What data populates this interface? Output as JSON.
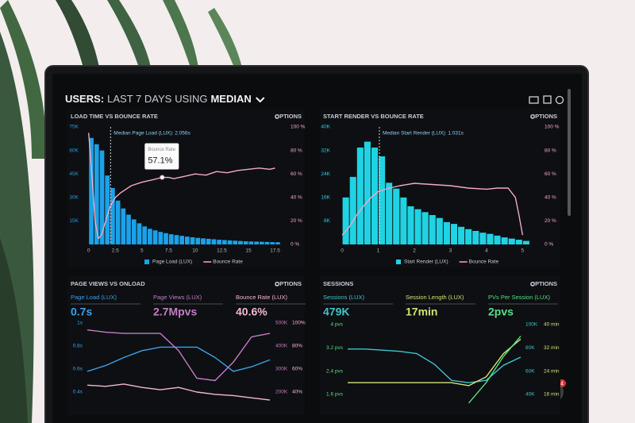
{
  "header": {
    "title": [
      "USERS:",
      "LAST 7 DAYS",
      "USING",
      "MEDIAN"
    ]
  },
  "chat_badge": 4,
  "chart_data": [
    {
      "type": "histogram",
      "title": "LOAD TIME VS BOUNCE RATE",
      "options": "OPTIONS",
      "bins": [
        0,
        0.5,
        1,
        1.5,
        2,
        2.5,
        3,
        3.5,
        4,
        4.5,
        5,
        5.5,
        6,
        6.5,
        7,
        7.5,
        8,
        8.5,
        9,
        9.5,
        10,
        10.5,
        11,
        11.5,
        12,
        12.5,
        13,
        13.5,
        14,
        14.5,
        15,
        15.5,
        16,
        16.5,
        17,
        17.5,
        18
      ],
      "series": [
        {
          "name": "Page Load (LUX)",
          "color": "#1ba2e8",
          "values": [
            68000,
            64000,
            60000,
            44000,
            36000,
            28000,
            23000,
            19000,
            16000,
            13500,
            11500,
            10000,
            9000,
            8000,
            7200,
            6500,
            6000,
            5500,
            5000,
            4600,
            4200,
            3900,
            3600,
            3300,
            3000,
            2800,
            2600,
            2400,
            2200,
            2000,
            1900,
            1800,
            1700,
            1600,
            1500,
            1400
          ]
        },
        {
          "name": "Bounce Rate",
          "color": "#f2a9c6",
          "axis": "y2",
          "x": [
            0,
            0.3,
            0.6,
            0.9,
            1.2,
            1.6,
            2,
            2.5,
            3,
            3.5,
            4,
            5,
            6,
            6.9,
            7.5,
            8,
            9,
            10,
            11,
            12,
            13,
            14,
            15,
            16,
            17,
            17.5
          ],
          "values": [
            95,
            60,
            20,
            5,
            8,
            20,
            32,
            40,
            44,
            47,
            50,
            53,
            55,
            57.1,
            57,
            56,
            58,
            60,
            59,
            62,
            61,
            63,
            64,
            65,
            64,
            65
          ]
        }
      ],
      "xlim": [
        -0.5,
        18.5
      ],
      "xticks": [
        0,
        2.5,
        5,
        7.5,
        10,
        12.5,
        15,
        17.5
      ],
      "ylim": [
        0,
        75000
      ],
      "yticks": [
        {
          "value": 15000,
          "label": "15K"
        },
        {
          "value": 30000,
          "label": "30K"
        },
        {
          "value": 45000,
          "label": "45K"
        },
        {
          "value": 60000,
          "label": "60K"
        },
        {
          "value": 75000,
          "label": "75K"
        }
      ],
      "y2lim": [
        0,
        100
      ],
      "y2ticks": [
        {
          "value": 0,
          "label": "0 %"
        },
        {
          "value": 20,
          "label": "20 %"
        },
        {
          "value": 40,
          "label": "40 %"
        },
        {
          "value": 60,
          "label": "60 %"
        },
        {
          "value": 80,
          "label": "80 %"
        },
        {
          "value": 100,
          "label": "100 %"
        }
      ],
      "annotations": [
        {
          "text": "Median Page Load (LUX): 2.056s",
          "x": 2.056
        }
      ],
      "tooltip": {
        "label": "Bounce Rate",
        "x": 6.9,
        "value": 57.1,
        "value_label": "57.1%"
      }
    },
    {
      "type": "histogram",
      "title": "START RENDER VS BOUNCE RATE",
      "options": "OPTIONS",
      "bins": [
        0,
        0.2,
        0.4,
        0.6,
        0.8,
        1,
        1.2,
        1.4,
        1.6,
        1.8,
        2,
        2.2,
        2.4,
        2.6,
        2.8,
        3,
        3.2,
        3.4,
        3.6,
        3.8,
        4,
        4.2,
        4.4,
        4.6,
        4.8,
        5,
        5.2
      ],
      "series": [
        {
          "name": "Start Render (LUX)",
          "color": "#1fd3e3",
          "values": [
            16000,
            23000,
            33000,
            35000,
            33000,
            30000,
            21000,
            19000,
            16000,
            13000,
            12000,
            11000,
            10000,
            9000,
            7600,
            7000,
            6000,
            5200,
            4600,
            4000,
            3600,
            3000,
            2400,
            2000,
            1600,
            1200
          ]
        },
        {
          "name": "Bounce Rate",
          "color": "#f2a9c6",
          "axis": "y2",
          "x": [
            0,
            0.2,
            0.4,
            0.6,
            0.8,
            1,
            1.3,
            1.6,
            2,
            2.5,
            3,
            3.5,
            4,
            4.3,
            4.6,
            4.8,
            4.9,
            5
          ],
          "values": [
            8,
            15,
            25,
            33,
            40,
            45,
            48,
            50,
            52,
            51,
            50,
            48,
            47,
            48,
            48,
            40,
            25,
            8
          ]
        }
      ],
      "xlim": [
        -0.2,
        5.3
      ],
      "xticks": [
        0,
        1,
        2,
        3,
        4,
        5
      ],
      "ylim": [
        0,
        40000
      ],
      "yticks": [
        {
          "value": 8000,
          "label": "8K"
        },
        {
          "value": 16000,
          "label": "16K"
        },
        {
          "value": 24000,
          "label": "24K"
        },
        {
          "value": 32000,
          "label": "32K"
        },
        {
          "value": 40000,
          "label": "40K"
        }
      ],
      "y2lim": [
        0,
        100
      ],
      "y2ticks": [
        {
          "value": 0,
          "label": "0 %"
        },
        {
          "value": 20,
          "label": "20 %"
        },
        {
          "value": 40,
          "label": "40 %"
        },
        {
          "value": 60,
          "label": "60 %"
        },
        {
          "value": 80,
          "label": "80 %"
        },
        {
          "value": 100,
          "label": "100 %"
        }
      ],
      "annotations": [
        {
          "text": "Median Start Render (LUX): 1.031s",
          "x": 1.031
        }
      ]
    },
    {
      "type": "line",
      "title": "PAGE VIEWS VS ONLOAD",
      "options": "OPTIONS",
      "categories": [
        null,
        null,
        null,
        null,
        null,
        null,
        null,
        null,
        null,
        null,
        null
      ],
      "series": [
        {
          "name": "Page Load (LUX)",
          "kpi": "0.7s",
          "color": "#3aa2ea",
          "values": [
            0.58,
            0.63,
            0.7,
            0.76,
            0.79,
            0.79,
            0.79,
            0.7,
            0.58,
            0.62,
            0.68
          ]
        },
        {
          "name": "Page Views (LUX)",
          "kpi": "2.7Mpvs",
          "color": "#c57cc8",
          "axis": "y2",
          "values": [
            470000,
            460000,
            455000,
            455000,
            455000,
            380000,
            260000,
            250000,
            330000,
            440000,
            455000
          ]
        },
        {
          "name": "Bounce Rate (LUX)",
          "kpi": "40.6%",
          "color": "#f5b7cf",
          "axis": "y3",
          "values": [
            46,
            45,
            47,
            44,
            42,
            44,
            40,
            38,
            37,
            35,
            33
          ]
        }
      ],
      "ylim": [
        0.3,
        1
      ],
      "yticks": [
        {
          "value": 0.4,
          "label": "0.4s"
        },
        {
          "value": 0.6,
          "label": "0.6s"
        },
        {
          "value": 0.8,
          "label": "0.8s"
        },
        {
          "value": 1,
          "label": "1s"
        }
      ],
      "y2lim": [
        150000,
        500000
      ],
      "y2ticks": [
        {
          "value": 200000,
          "label": "200K"
        },
        {
          "value": 300000,
          "label": "300K"
        },
        {
          "value": 400000,
          "label": "400K"
        },
        {
          "value": 500000,
          "label": "500K"
        }
      ],
      "y3lim": [
        30,
        100
      ],
      "y3ticks": [
        {
          "value": 40,
          "label": "40%"
        },
        {
          "value": 60,
          "label": "60%"
        },
        {
          "value": 80,
          "label": "80%"
        },
        {
          "value": 100,
          "label": "100%"
        }
      ]
    },
    {
      "type": "line",
      "title": "SESSIONS",
      "options": "OPTIONS",
      "categories": [
        null,
        null,
        null,
        null,
        null,
        null,
        null,
        null,
        null,
        null,
        null
      ],
      "series": [
        {
          "name": "Sessions (LUX)",
          "kpi": "479K",
          "color": "#3fc3cc",
          "axis": "y2",
          "values": [
            79000,
            79000,
            78000,
            77000,
            75000,
            66000,
            52000,
            50000,
            52000,
            65000,
            72000
          ]
        },
        {
          "name": "Session Length (LUX)",
          "kpi": "17min",
          "color": "#cde476",
          "axis": "y3",
          "values": [
            20,
            20,
            20,
            20,
            20,
            20,
            20,
            19,
            22,
            30,
            35
          ]
        },
        {
          "name": "PVs Per Session (LUX)",
          "kpi": "2pvs",
          "color": "#53e083",
          "values": [
            null,
            null,
            null,
            null,
            null,
            null,
            null,
            1.3,
            2,
            2.9,
            3.6
          ]
        }
      ],
      "ylim": [
        1.2,
        4
      ],
      "yticks": [
        {
          "value": 1.6,
          "label": "1.6 pvs"
        },
        {
          "value": 2.4,
          "label": "2.4 pvs"
        },
        {
          "value": 3.2,
          "label": "3.2 pvs"
        },
        {
          "value": 4,
          "label": "4 pvs"
        }
      ],
      "y2lim": [
        30000,
        100000
      ],
      "y2ticks": [
        {
          "value": 40000,
          "label": "40K"
        },
        {
          "value": 60000,
          "label": "60K"
        },
        {
          "value": 80000,
          "label": "80K"
        },
        {
          "value": 100000,
          "label": "100K"
        }
      ],
      "y3lim": [
        12,
        40
      ],
      "y3ticks": [
        {
          "value": 16,
          "label": "16 min"
        },
        {
          "value": 24,
          "label": "24 min"
        },
        {
          "value": 32,
          "label": "32 min"
        },
        {
          "value": 40,
          "label": "40 min"
        }
      ]
    }
  ]
}
